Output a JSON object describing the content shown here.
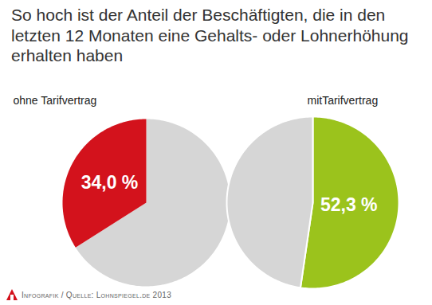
{
  "title": "So hoch ist der Anteil der Beschäftigten, die in den letzten 12 Monaten eine Gehalts- oder Lohnerhöhung erhalten haben",
  "source": "Infografik / Quelle: Lohnspiegel.de 2013",
  "chart_data": [
    {
      "type": "pie",
      "title": "ohne Tarifvertrag",
      "values": [
        66.0,
        34.0
      ],
      "value_labels": [
        null,
        "34,0 %"
      ],
      "colors": [
        "#d6d6d6",
        "#d3121c"
      ],
      "data_labels": true
    },
    {
      "type": "pie",
      "title": "mitTarifvertrag",
      "values": [
        52.3,
        47.7
      ],
      "value_labels": [
        "52,3 %",
        null
      ],
      "colors": [
        "#9bc31c",
        "#d6d6d6"
      ],
      "data_labels": true
    }
  ]
}
